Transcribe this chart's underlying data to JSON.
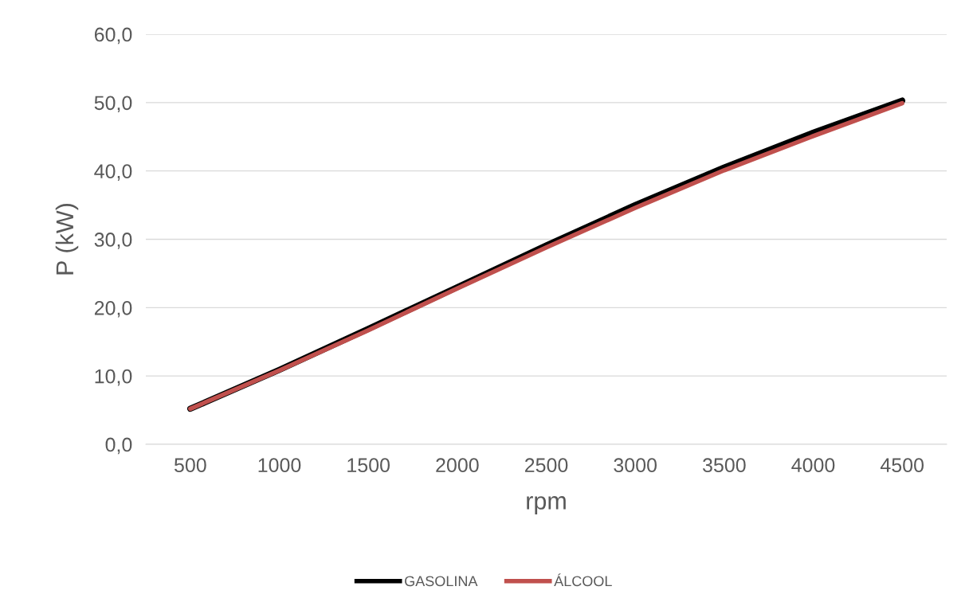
{
  "chart_data": {
    "type": "line",
    "xlabel": "rpm",
    "ylabel": "P (kW)",
    "categories": [
      "500",
      "1000",
      "1500",
      "2000",
      "2500",
      "3000",
      "3500",
      "4000",
      "4500"
    ],
    "series": [
      {
        "name": "GASOLINA",
        "color": "#000000",
        "values": [
          5.2,
          10.9,
          16.9,
          23.0,
          29.1,
          35.0,
          40.5,
          45.6,
          50.3
        ]
      },
      {
        "name": "ÁLCOOL",
        "color": "#c0504d",
        "values": [
          5.2,
          10.8,
          16.7,
          22.8,
          28.8,
          34.6,
          40.1,
          45.1,
          49.9
        ]
      }
    ],
    "ylim": [
      0,
      60
    ],
    "yticks": [
      {
        "value": 0,
        "label": "0,0"
      },
      {
        "value": 10,
        "label": "10,0"
      },
      {
        "value": 20,
        "label": "20,0"
      },
      {
        "value": 30,
        "label": "30,0"
      },
      {
        "value": 40,
        "label": "40,0"
      },
      {
        "value": 50,
        "label": "50,0"
      },
      {
        "value": 60,
        "label": "60,0"
      }
    ],
    "grid": "y",
    "legend": "bottom",
    "marker": "none",
    "line_style": "solid"
  }
}
